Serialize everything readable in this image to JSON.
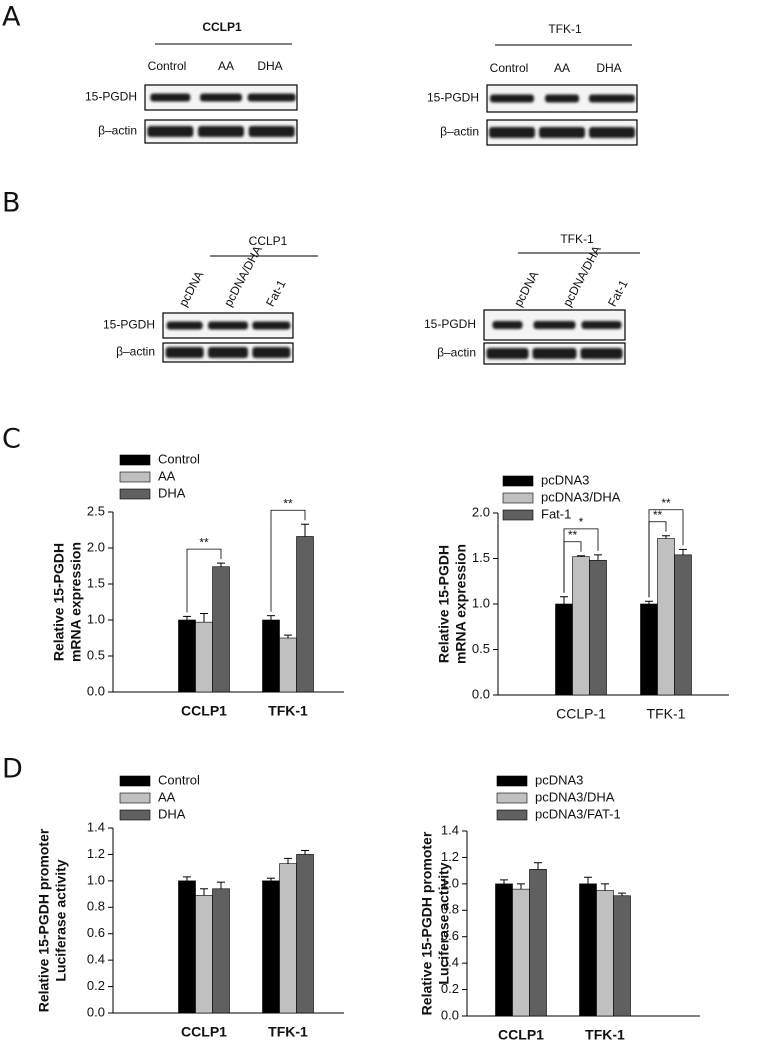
{
  "panels": [
    {
      "label": "A",
      "blots": [
        {
          "title": "CCLP1",
          "lanes": [
            "Control",
            "AA",
            "DHA"
          ],
          "rows": [
            "15-PGDH",
            "β–actin"
          ]
        },
        {
          "title": "TFK-1",
          "lanes": [
            "Control",
            "AA",
            "DHA"
          ],
          "rows": [
            "15-PGDH",
            "β–actin"
          ]
        }
      ]
    },
    {
      "label": "B",
      "blots": [
        {
          "title": "CCLP1",
          "lanes": [
            "pcDNA",
            "pcDNA/DHA",
            "Fat-1"
          ],
          "rows": [
            "15-PGDH",
            "β–actin"
          ]
        },
        {
          "title": "TFK-1",
          "lanes": [
            "pcDNA",
            "pcDNA/DHA",
            "Fat-1"
          ],
          "rows": [
            "15-PGDH",
            "β–actin"
          ]
        }
      ]
    },
    {
      "label": "C"
    },
    {
      "label": "D"
    }
  ],
  "chart_data": [
    {
      "type": "bar",
      "ylabel": [
        "Relative 15-PGDH",
        "mRNA expression"
      ],
      "categories": [
        "CCLP1",
        "TFK-1"
      ],
      "series": [
        {
          "name": "Control",
          "color": "#000000",
          "values": [
            1.0,
            1.0
          ],
          "errors": [
            0.05,
            0.06
          ]
        },
        {
          "name": "AA",
          "color": "#c0c0c0",
          "values": [
            0.97,
            0.75
          ],
          "errors": [
            0.12,
            0.04
          ]
        },
        {
          "name": "DHA",
          "color": "#606060",
          "values": [
            1.74,
            2.16
          ],
          "errors": [
            0.05,
            0.17
          ]
        }
      ],
      "ylim": [
        0,
        2.5
      ],
      "yticks": [
        {
          "value": 0,
          "label": "0.0"
        },
        {
          "value": 0.5,
          "label": "0.5"
        },
        {
          "value": 1,
          "label": "1.0"
        },
        {
          "value": 1.5,
          "label": "1.5"
        },
        {
          "value": 2,
          "label": "2.0"
        },
        {
          "value": 2.5,
          "label": "2.5"
        }
      ],
      "annotations": [
        {
          "text": "**",
          "category": 0,
          "series": [
            0,
            2
          ]
        },
        {
          "text": "**",
          "category": 1,
          "series": [
            0,
            2
          ]
        }
      ]
    },
    {
      "type": "bar",
      "ylabel": [
        "Relative 15-PGDH",
        "mRNA expression"
      ],
      "categories": [
        "CCLP-1",
        "TFK-1"
      ],
      "series": [
        {
          "name": "pcDNA3",
          "color": "#000000",
          "values": [
            1.0,
            1.0
          ],
          "errors": [
            0.08,
            0.03
          ]
        },
        {
          "name": "pcDNA3/DHA",
          "color": "#c0c0c0",
          "values": [
            1.52,
            1.72
          ],
          "errors": [
            0.01,
            0.03
          ]
        },
        {
          "name": "Fat-1",
          "color": "#606060",
          "values": [
            1.48,
            1.54
          ],
          "errors": [
            0.06,
            0.06
          ]
        }
      ],
      "ylim": [
        0,
        2.0
      ],
      "yticks": [
        {
          "value": 0,
          "label": "0.0"
        },
        {
          "value": 0.5,
          "label": "0.5"
        },
        {
          "value": 1,
          "label": "1.0"
        },
        {
          "value": 1.5,
          "label": "1.5"
        },
        {
          "value": 2,
          "label": "2.0"
        }
      ],
      "annotations": [
        {
          "text": "**",
          "category": 0,
          "series": [
            0,
            1
          ]
        },
        {
          "text": "*",
          "category": 0,
          "series": [
            0,
            2
          ]
        },
        {
          "text": "**",
          "category": 1,
          "series": [
            0,
            1
          ]
        },
        {
          "text": "**",
          "category": 1,
          "series": [
            0,
            2
          ]
        }
      ]
    },
    {
      "type": "bar",
      "ylabel": [
        "Relative 15-PGDH promoter",
        "Luciferase activity"
      ],
      "categories": [
        "CCLP1",
        "TFK-1"
      ],
      "series": [
        {
          "name": "Control",
          "color": "#000000",
          "values": [
            1.0,
            1.0
          ],
          "errors": [
            0.03,
            0.02
          ]
        },
        {
          "name": "AA",
          "color": "#c0c0c0",
          "values": [
            0.89,
            1.13
          ],
          "errors": [
            0.05,
            0.04
          ]
        },
        {
          "name": "DHA",
          "color": "#606060",
          "values": [
            0.94,
            1.2
          ],
          "errors": [
            0.05,
            0.03
          ]
        }
      ],
      "ylim": [
        0,
        1.4
      ],
      "yticks": [
        {
          "value": 0,
          "label": "0.0"
        },
        {
          "value": 0.2,
          "label": "0.2"
        },
        {
          "value": 0.4,
          "label": "0.4"
        },
        {
          "value": 0.6,
          "label": "0.6"
        },
        {
          "value": 0.8,
          "label": "0.8"
        },
        {
          "value": 1,
          "label": "1.0"
        },
        {
          "value": 1.2,
          "label": "1.2"
        },
        {
          "value": 1.4,
          "label": "1.4"
        }
      ]
    },
    {
      "type": "bar",
      "ylabel": [
        "Relative 15-PGDH promoter",
        "Luciferase activity"
      ],
      "categories": [
        "CCLP1",
        "TFK-1"
      ],
      "series": [
        {
          "name": "pcDNA3",
          "color": "#000000",
          "values": [
            1.0,
            1.0
          ],
          "errors": [
            0.03,
            0.05
          ]
        },
        {
          "name": "pcDNA3/DHA",
          "color": "#c0c0c0",
          "values": [
            0.96,
            0.95
          ],
          "errors": [
            0.04,
            0.05
          ]
        },
        {
          "name": "pcDNA3/FAT-1",
          "color": "#606060",
          "values": [
            1.11,
            0.91
          ],
          "errors": [
            0.05,
            0.02
          ]
        }
      ],
      "ylim": [
        0,
        1.4
      ],
      "yticks": [
        {
          "value": 0,
          "label": "0.0"
        },
        {
          "value": 0.2,
          "label": "0.2"
        },
        {
          "value": 0.4,
          "label": "0.4"
        },
        {
          "value": 0.6,
          "label": "0.6"
        },
        {
          "value": 0.8,
          "label": "0.8"
        },
        {
          "value": 1,
          "label": "1.0"
        },
        {
          "value": 1.2,
          "label": "1.2"
        },
        {
          "value": 1.4,
          "label": "1.4"
        }
      ]
    }
  ]
}
